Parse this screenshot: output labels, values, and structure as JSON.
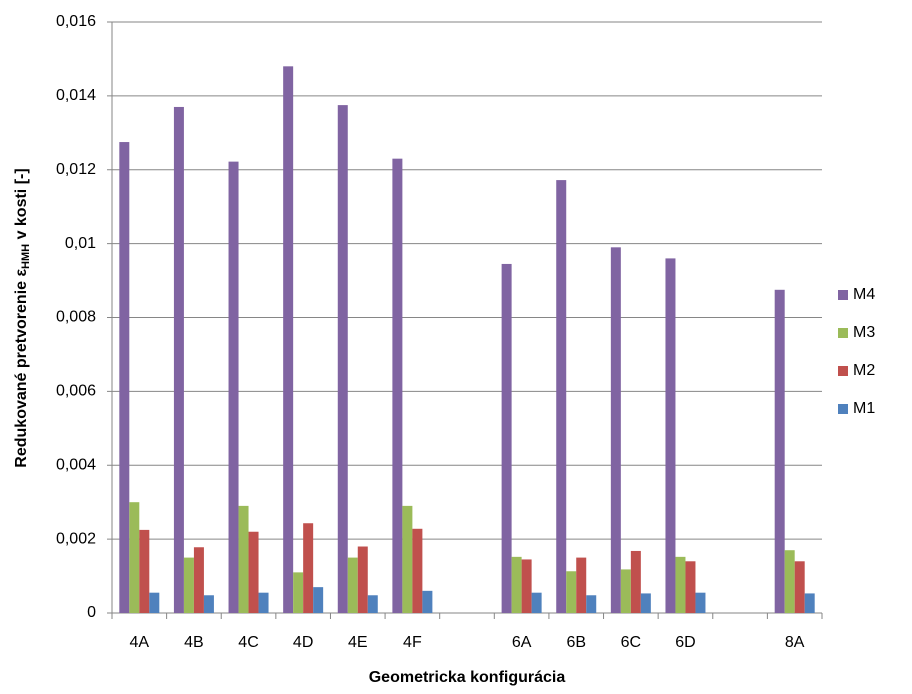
{
  "chart_data": {
    "type": "bar",
    "xlabel": "Geometricka konfigurácia",
    "ylabel": {
      "text": "Redukované pretvorenie ε",
      "subscript": "HMH",
      "suffix": " v kosti [-]"
    },
    "categories": [
      "4A",
      "4B",
      "4C",
      "4D",
      "4E",
      "4F",
      null,
      "6A",
      "6B",
      "6C",
      "6D",
      null,
      "8A"
    ],
    "series": [
      {
        "name": "M4",
        "color": "#8064a2",
        "values": [
          0.01275,
          0.0137,
          0.01222,
          0.0148,
          0.01375,
          0.0123,
          null,
          0.00945,
          0.01172,
          0.0099,
          0.0096,
          null,
          0.00875
        ]
      },
      {
        "name": "M3",
        "color": "#9bbb59",
        "values": [
          0.003,
          0.0015,
          0.0029,
          0.0011,
          0.0015,
          0.0029,
          null,
          0.00152,
          0.00113,
          0.00118,
          0.00152,
          null,
          0.0017
        ]
      },
      {
        "name": "M2",
        "color": "#c0504d",
        "values": [
          0.00225,
          0.00178,
          0.0022,
          0.00243,
          0.0018,
          0.00228,
          null,
          0.00145,
          0.0015,
          0.00168,
          0.0014,
          null,
          0.0014
        ]
      },
      {
        "name": "M1",
        "color": "#4f81bd",
        "values": [
          0.00055,
          0.00048,
          0.00055,
          0.0007,
          0.00048,
          0.0006,
          null,
          0.00055,
          0.00048,
          0.00053,
          0.00055,
          null,
          0.00053
        ]
      }
    ],
    "ylim": [
      0,
      0.016
    ],
    "yticks": [
      0,
      {
        "value": 0.002,
        "label": "0,002"
      },
      {
        "value": 0.004,
        "label": "0,004"
      },
      {
        "value": 0.006,
        "label": "0,006"
      },
      {
        "value": 0.008,
        "label": "0,008"
      },
      {
        "value": 0.01,
        "label": "0,01"
      },
      {
        "value": 0.012,
        "label": "0,012"
      },
      {
        "value": 0.014,
        "label": "0,014"
      },
      {
        "value": 0.016,
        "label": "0,016"
      }
    ],
    "grid": true,
    "legend": "right"
  }
}
